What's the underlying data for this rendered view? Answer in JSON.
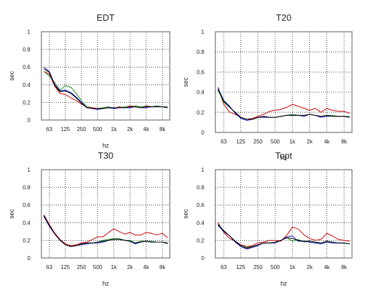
{
  "colors": {
    "red": "#cc0000",
    "green": "#1a8a1a",
    "blue": "#1010c0",
    "black": "#000000",
    "background": "#ffffff",
    "grid": "#111111"
  },
  "chart_data": [
    {
      "type": "line",
      "title": "EDT",
      "xlabel": "hz",
      "ylabel": "sec",
      "ylim": [
        0,
        1
      ],
      "yticks": [
        "0",
        "0.2",
        "0.4",
        "0.6",
        "0.8",
        "1"
      ],
      "xscale": "log",
      "xticks": [
        "63",
        "125",
        "250",
        "500",
        "1k",
        "2k",
        "4k",
        "8k"
      ],
      "x": [
        50,
        63,
        80,
        100,
        125,
        160,
        200,
        250,
        315,
        400,
        500,
        630,
        800,
        1000,
        1250,
        1600,
        2000,
        2500,
        3150,
        4000,
        5000,
        6300,
        8000,
        10000
      ],
      "grid": true,
      "legend": "none",
      "series": [
        {
          "color": "red",
          "values": [
            0.55,
            0.52,
            0.38,
            0.3,
            0.29,
            0.25,
            0.22,
            0.18,
            0.15,
            0.14,
            0.13,
            0.13,
            0.14,
            0.13,
            0.15,
            0.14,
            0.16,
            0.15,
            0.14,
            0.16,
            0.15,
            0.16,
            0.15,
            0.14
          ]
        },
        {
          "color": "green",
          "values": [
            0.55,
            0.5,
            0.42,
            0.34,
            0.39,
            0.37,
            0.3,
            0.22,
            0.15,
            0.13,
            0.13,
            0.14,
            0.15,
            0.13,
            0.14,
            0.15,
            0.14,
            0.16,
            0.15,
            0.15,
            0.15,
            0.16,
            0.15,
            0.15
          ]
        },
        {
          "color": "blue",
          "values": [
            0.6,
            0.55,
            0.4,
            0.33,
            0.34,
            0.31,
            0.26,
            0.2,
            0.14,
            0.13,
            0.12,
            0.13,
            0.14,
            0.13,
            0.14,
            0.14,
            0.14,
            0.15,
            0.14,
            0.14,
            0.15,
            0.15,
            0.15,
            0.14
          ]
        },
        {
          "color": "black",
          "values": [
            0.58,
            0.54,
            0.39,
            0.32,
            0.33,
            0.3,
            0.25,
            0.19,
            0.14,
            0.13,
            0.13,
            0.13,
            0.14,
            0.14,
            0.14,
            0.14,
            0.15,
            0.15,
            0.14,
            0.15,
            0.15,
            0.15,
            0.15,
            0.14
          ]
        }
      ]
    },
    {
      "type": "line",
      "title": "T20",
      "xlabel": "hz",
      "ylabel": "sec",
      "ylim": [
        0,
        1
      ],
      "yticks": [
        "0",
        "0.2",
        "0.4",
        "0.6",
        "0.8",
        "1"
      ],
      "xscale": "log",
      "xticks": [
        "63",
        "125",
        "250",
        "500",
        "1k",
        "2k",
        "4k",
        "8k"
      ],
      "x": [
        50,
        63,
        80,
        100,
        125,
        160,
        200,
        250,
        315,
        400,
        500,
        630,
        800,
        1000,
        1250,
        1600,
        2000,
        2500,
        3150,
        4000,
        5000,
        6300,
        8000,
        10000
      ],
      "grid": true,
      "legend": "none",
      "series": [
        {
          "color": "red",
          "values": [
            0.45,
            0.28,
            0.2,
            0.18,
            0.15,
            0.13,
            0.14,
            0.16,
            0.18,
            0.21,
            0.22,
            0.23,
            0.25,
            0.28,
            0.26,
            0.24,
            0.22,
            0.24,
            0.2,
            0.24,
            0.22,
            0.21,
            0.21,
            0.19
          ]
        },
        {
          "color": "green",
          "values": [
            0.42,
            0.3,
            0.25,
            0.2,
            0.15,
            0.13,
            0.13,
            0.15,
            0.16,
            0.15,
            0.15,
            0.16,
            0.17,
            0.18,
            0.17,
            0.17,
            0.18,
            0.17,
            0.16,
            0.17,
            0.17,
            0.16,
            0.16,
            0.16
          ]
        },
        {
          "color": "blue",
          "values": [
            0.44,
            0.32,
            0.26,
            0.19,
            0.14,
            0.12,
            0.13,
            0.15,
            0.15,
            0.15,
            0.15,
            0.16,
            0.17,
            0.17,
            0.17,
            0.16,
            0.18,
            0.17,
            0.15,
            0.16,
            0.16,
            0.16,
            0.16,
            0.15
          ]
        },
        {
          "color": "black",
          "values": [
            0.43,
            0.31,
            0.25,
            0.2,
            0.15,
            0.13,
            0.13,
            0.15,
            0.16,
            0.15,
            0.15,
            0.16,
            0.17,
            0.17,
            0.17,
            0.17,
            0.18,
            0.17,
            0.16,
            0.17,
            0.16,
            0.16,
            0.16,
            0.15
          ]
        }
      ]
    },
    {
      "type": "line",
      "title": "T30",
      "xlabel": "hz",
      "ylabel": "sec",
      "ylim": [
        0,
        1
      ],
      "yticks": [
        "0",
        "0.2",
        "0.4",
        "0.6",
        "0.8",
        "1"
      ],
      "xscale": "log",
      "xticks": [
        "63",
        "125",
        "250",
        "500",
        "1k",
        "2k",
        "4k",
        "8k"
      ],
      "x": [
        50,
        63,
        80,
        100,
        125,
        160,
        200,
        250,
        315,
        400,
        500,
        630,
        800,
        1000,
        1250,
        1600,
        2000,
        2500,
        3150,
        4000,
        5000,
        6300,
        8000,
        10000
      ],
      "grid": true,
      "legend": "none",
      "series": [
        {
          "color": "red",
          "values": [
            0.49,
            0.38,
            0.28,
            0.21,
            0.16,
            0.14,
            0.15,
            0.17,
            0.18,
            0.21,
            0.24,
            0.24,
            0.29,
            0.33,
            0.3,
            0.27,
            0.29,
            0.26,
            0.26,
            0.29,
            0.28,
            0.26,
            0.28,
            0.23
          ]
        },
        {
          "color": "green",
          "values": [
            0.48,
            0.37,
            0.27,
            0.2,
            0.15,
            0.13,
            0.14,
            0.16,
            0.17,
            0.17,
            0.18,
            0.2,
            0.21,
            0.22,
            0.22,
            0.2,
            0.2,
            0.17,
            0.19,
            0.19,
            0.19,
            0.18,
            0.18,
            0.16
          ]
        },
        {
          "color": "blue",
          "values": [
            0.47,
            0.36,
            0.27,
            0.2,
            0.15,
            0.13,
            0.14,
            0.15,
            0.16,
            0.17,
            0.17,
            0.18,
            0.2,
            0.21,
            0.21,
            0.2,
            0.19,
            0.16,
            0.18,
            0.19,
            0.18,
            0.18,
            0.18,
            0.17
          ]
        },
        {
          "color": "black",
          "values": [
            0.48,
            0.37,
            0.27,
            0.2,
            0.15,
            0.13,
            0.14,
            0.16,
            0.17,
            0.17,
            0.18,
            0.19,
            0.2,
            0.21,
            0.21,
            0.2,
            0.19,
            0.17,
            0.18,
            0.19,
            0.18,
            0.18,
            0.18,
            0.17
          ]
        }
      ]
    },
    {
      "type": "line",
      "title": "Topt",
      "xlabel": "hz",
      "ylabel": "sec",
      "ylim": [
        0,
        1
      ],
      "yticks": [
        "0",
        "0.2",
        "0.4",
        "0.6",
        "0.8",
        "1"
      ],
      "xscale": "log",
      "xticks": [
        "63",
        "125",
        "250",
        "500",
        "1k",
        "2k",
        "4k",
        "8k"
      ],
      "x": [
        50,
        63,
        80,
        100,
        125,
        160,
        200,
        250,
        315,
        400,
        500,
        630,
        800,
        1000,
        1250,
        1600,
        2000,
        2500,
        3150,
        4000,
        5000,
        6300,
        8000,
        10000
      ],
      "grid": true,
      "legend": "none",
      "series": [
        {
          "color": "red",
          "values": [
            0.4,
            0.29,
            0.22,
            0.19,
            0.15,
            0.13,
            0.14,
            0.17,
            0.18,
            0.2,
            0.2,
            0.19,
            0.26,
            0.35,
            0.33,
            0.26,
            0.22,
            0.2,
            0.21,
            0.28,
            0.25,
            0.21,
            0.2,
            0.19
          ]
        },
        {
          "color": "green",
          "values": [
            0.38,
            0.31,
            0.25,
            0.19,
            0.14,
            0.12,
            0.13,
            0.15,
            0.17,
            0.17,
            0.18,
            0.2,
            0.23,
            0.19,
            0.21,
            0.18,
            0.19,
            0.18,
            0.17,
            0.19,
            0.18,
            0.17,
            0.17,
            0.16
          ]
        },
        {
          "color": "blue",
          "values": [
            0.37,
            0.3,
            0.25,
            0.18,
            0.13,
            0.1,
            0.12,
            0.14,
            0.17,
            0.17,
            0.17,
            0.2,
            0.24,
            0.25,
            0.19,
            0.19,
            0.18,
            0.17,
            0.16,
            0.18,
            0.17,
            0.17,
            0.17,
            0.16
          ]
        },
        {
          "color": "black",
          "values": [
            0.38,
            0.31,
            0.25,
            0.19,
            0.14,
            0.11,
            0.13,
            0.15,
            0.17,
            0.17,
            0.18,
            0.2,
            0.23,
            0.22,
            0.2,
            0.19,
            0.19,
            0.18,
            0.17,
            0.19,
            0.18,
            0.17,
            0.17,
            0.16
          ]
        }
      ]
    }
  ]
}
